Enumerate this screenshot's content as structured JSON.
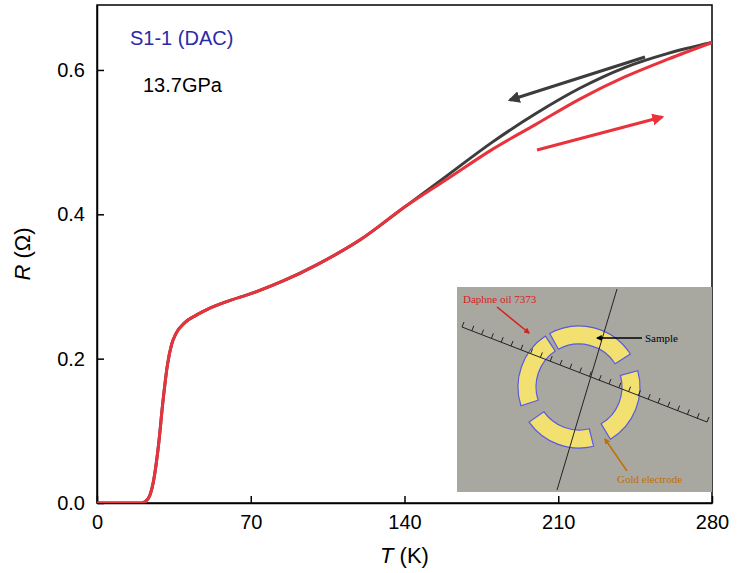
{
  "chart_data": {
    "type": "line",
    "x_label": "T (K)",
    "y_label": "R (Ω)",
    "x": [
      0,
      10,
      20,
      22,
      24,
      26,
      28,
      30,
      32,
      34,
      36,
      40,
      45,
      50,
      60,
      70,
      85,
      100,
      120,
      140,
      160,
      180,
      200,
      220,
      240,
      260,
      280
    ],
    "series": [
      {
        "color": "#3c3c3c",
        "line_style": "solid",
        "values": [
          0,
          0,
          0,
          0.002,
          0.01,
          0.035,
          0.08,
          0.14,
          0.19,
          0.22,
          0.235,
          0.25,
          0.26,
          0.268,
          0.28,
          0.29,
          0.308,
          0.33,
          0.365,
          0.41,
          0.455,
          0.5,
          0.54,
          0.575,
          0.603,
          0.623,
          0.638
        ]
      },
      {
        "color": "#e8323c",
        "line_style": "solid",
        "values": [
          0,
          0,
          0,
          0.002,
          0.01,
          0.035,
          0.08,
          0.14,
          0.19,
          0.22,
          0.235,
          0.25,
          0.26,
          0.268,
          0.28,
          0.29,
          0.308,
          0.33,
          0.365,
          0.41,
          0.45,
          0.49,
          0.525,
          0.56,
          0.59,
          0.615,
          0.638
        ]
      }
    ],
    "xlim": [
      0,
      280
    ],
    "ylim": [
      0,
      0.69
    ],
    "xticks": [
      0,
      70,
      140,
      210,
      280
    ],
    "yticks": [
      {
        "value": 0,
        "label": "0.0"
      },
      0.2,
      0.4,
      0.6
    ],
    "annotations": [
      {
        "text": "S1-1 (DAC)",
        "color": "#2a2aa8"
      },
      {
        "text": "13.7GPa",
        "color": "#000000"
      },
      {
        "text": "Daphne oil 7373",
        "color": "#d81e1e"
      },
      {
        "text": "Sample",
        "color": "#000000"
      },
      {
        "text": "Gold electrode",
        "color": "#c07000"
      }
    ]
  }
}
